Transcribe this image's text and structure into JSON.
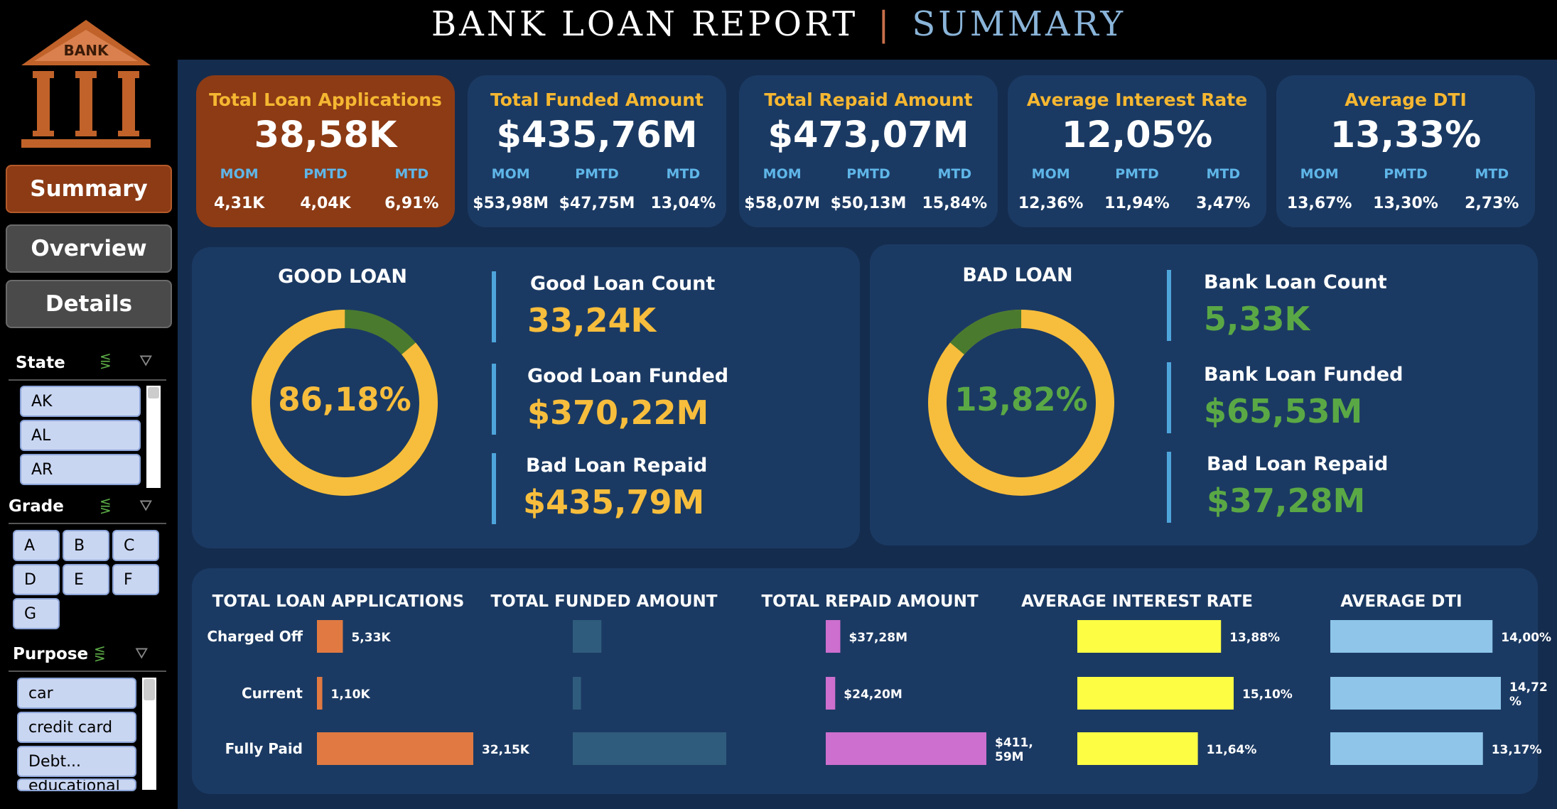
{
  "header": {
    "title": "BANK LOAN REPORT",
    "separator": "|",
    "subtitle": "SUMMARY"
  },
  "logo": {
    "text": "BANK",
    "color": "#c0622a"
  },
  "nav": {
    "summary": "Summary",
    "overview": "Overview",
    "details": "Details"
  },
  "filters": {
    "state": {
      "label": "State",
      "items": [
        "AK",
        "AL",
        "AR"
      ]
    },
    "grade": {
      "label": "Grade",
      "items": [
        "A",
        "B",
        "C",
        "D",
        "E",
        "F",
        "G"
      ]
    },
    "purpose": {
      "label": "Purpose",
      "items": [
        "car",
        "credit card",
        "Debt...",
        "educational"
      ]
    }
  },
  "kpis": [
    {
      "title": "Total Loan Applications",
      "value": "38,58K",
      "labels": [
        "MOM",
        "PMTD",
        "MTD"
      ],
      "values": [
        "4,31K",
        "4,04K",
        "6,91%"
      ]
    },
    {
      "title": "Total Funded Amount",
      "value": "$435,76M",
      "labels": [
        "MOM",
        "PMTD",
        "MTD"
      ],
      "values": [
        "$53,98M",
        "$47,75M",
        "13,04%"
      ]
    },
    {
      "title": "Total Repaid Amount",
      "value": "$473,07M",
      "labels": [
        "MOM",
        "PMTD",
        "MTD"
      ],
      "values": [
        "$58,07M",
        "$50,13M",
        "15,84%"
      ]
    },
    {
      "title": "Average Interest Rate",
      "value": "12,05%",
      "labels": [
        "MOM",
        "PMTD",
        "MTD"
      ],
      "values": [
        "12,36%",
        "11,94%",
        "3,47%"
      ]
    },
    {
      "title": "Average DTI",
      "value": "13,33%",
      "labels": [
        "MOM",
        "PMTD",
        "MTD"
      ],
      "values": [
        "13,67%",
        "13,30%",
        "2,73%"
      ]
    }
  ],
  "good_loan": {
    "title": "GOOD LOAN",
    "percent_label": "86,18%",
    "percent": 86.18,
    "metrics": [
      {
        "label": "Good Loan Count",
        "value": "33,24K"
      },
      {
        "label": "Good Loan Funded",
        "value": "$370,22M"
      },
      {
        "label": "Bad Loan Repaid",
        "value": "$435,79M"
      }
    ]
  },
  "bad_loan": {
    "title": "BAD LOAN",
    "percent_label": "13,82%",
    "percent": 13.82,
    "metrics": [
      {
        "label": "Bank Loan Count",
        "value": "5,33K"
      },
      {
        "label": "Bank Loan Funded",
        "value": "$65,53M"
      },
      {
        "label": "Bad Loan Repaid",
        "value": "$37,28M"
      }
    ]
  },
  "colors": {
    "gold": "#f7bd3c",
    "green": "#4a7a2e",
    "green_text": "#5aa845",
    "orange": "#e07a42",
    "teal": "#2f5c7c",
    "pink": "#cd6fcf",
    "yellow": "#fdfd44",
    "lightblue": "#8ec5e9"
  },
  "chart_data": [
    {
      "type": "bar",
      "title": "TOTAL LOAN APPLICATIONS",
      "categories": [
        "Charged Off",
        "Current",
        "Fully Paid"
      ],
      "values": [
        5.33,
        1.1,
        32.15
      ],
      "value_labels": [
        "5,33K",
        "1,10K",
        "32,15K"
      ],
      "color": "#e07a42"
    },
    {
      "type": "bar",
      "title": "TOTAL FUNDED AMOUNT",
      "categories": [
        "Charged Off",
        "Current",
        "Fully Paid"
      ],
      "values": [
        65.53,
        18.87,
        351.36
      ],
      "value_labels": [
        "",
        "",
        ""
      ],
      "color": "#2f5c7c"
    },
    {
      "type": "bar",
      "title": "TOTAL REPAID AMOUNT",
      "categories": [
        "Charged Off",
        "Current",
        "Fully Paid"
      ],
      "values": [
        37.28,
        24.2,
        411.59
      ],
      "value_labels": [
        "$37,28M",
        "$24,20M",
        "$411,\n59M"
      ],
      "color": "#cd6fcf"
    },
    {
      "type": "bar",
      "title": "AVERAGE INTEREST RATE",
      "categories": [
        "Charged Off",
        "Current",
        "Fully Paid"
      ],
      "values": [
        13.88,
        15.1,
        11.64
      ],
      "value_labels": [
        "13,88%",
        "15,10%",
        "11,64%"
      ],
      "color": "#fdfd44"
    },
    {
      "type": "bar",
      "title": "AVERAGE DTI",
      "categories": [
        "Charged Off",
        "Current",
        "Fully Paid"
      ],
      "values": [
        14.0,
        14.72,
        13.17
      ],
      "value_labels": [
        "14,00%",
        "14,72\n%",
        "13,17%"
      ],
      "color": "#8ec5e9"
    }
  ]
}
